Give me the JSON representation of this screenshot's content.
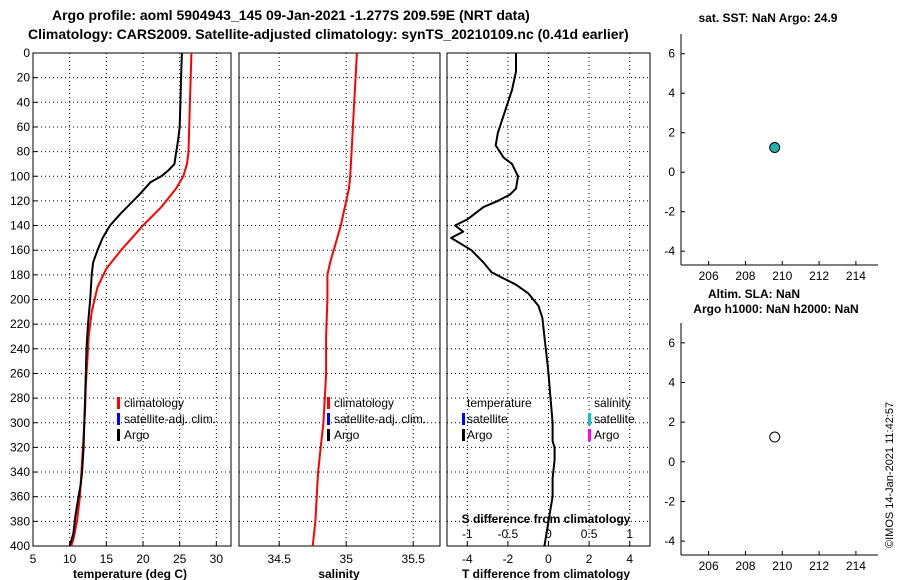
{
  "header": {
    "line1": "Argo profile: aoml 5904943_145 09-Jan-2021 -1.277S 209.59E (NRT data)",
    "line2": "Climatology: CARS2009. Satellite-adjusted climatology: synTS_20210109.nc (0.41d earlier)"
  },
  "copyright": "©IMOS 14-Jan-2021 11:42:57",
  "colors": {
    "climatology": "#ff0000",
    "satellite": "#0000ff",
    "argo": "#000000",
    "sat_cyan": "#00cccc",
    "argo_magenta": "#ff00ff",
    "marker_fill": "#20b2aa"
  },
  "chart_data": [
    {
      "id": "temperature",
      "type": "line",
      "xlabel": "temperature (deg C)",
      "xlim": [
        5,
        32
      ],
      "xticks": [
        5,
        10,
        15,
        20,
        25,
        30
      ],
      "xtick_labels": [
        "5",
        "10",
        "15",
        "20",
        "25",
        "30"
      ],
      "ylim": [
        0,
        400
      ],
      "yticks": [
        0,
        20,
        40,
        60,
        80,
        100,
        120,
        140,
        160,
        180,
        200,
        220,
        240,
        260,
        280,
        300,
        320,
        340,
        360,
        380,
        400
      ],
      "ytick_labels": [
        "0",
        "20",
        "40",
        "60",
        "80",
        "100",
        "120",
        "140",
        "160",
        "180",
        "200",
        "220",
        "240",
        "260",
        "280",
        "300",
        "320",
        "340",
        "360",
        "380",
        "400"
      ],
      "grid": true,
      "legend": [
        "climatology",
        "satellite-adj. clim.",
        "Argo"
      ],
      "series": [
        {
          "name": "climatology",
          "color": "#ff0000",
          "x": [
            26.6,
            26.5,
            26.4,
            26.3,
            26.2,
            26.0,
            25.5,
            24.5,
            22.5,
            20.0,
            17.0,
            15.0,
            13.8,
            13.0,
            12.6,
            12.4,
            12.2,
            12.1,
            12.0,
            11.8,
            11.6,
            11.4,
            11.0,
            10.5,
            10.2
          ],
          "y": [
            0,
            20,
            40,
            60,
            80,
            90,
            100,
            110,
            125,
            140,
            160,
            175,
            190,
            210,
            230,
            250,
            270,
            290,
            300,
            320,
            340,
            360,
            380,
            395,
            400
          ]
        },
        {
          "name": "Argo",
          "color": "#000000",
          "x": [
            25.3,
            25.2,
            25.1,
            25.0,
            24.8,
            24.6,
            24.4,
            24.3,
            23.5,
            22.5,
            21.0,
            19.5,
            17.0,
            15.5,
            14.5,
            13.8,
            13.2,
            13.0,
            12.8,
            12.5,
            12.3,
            12.2,
            12.1,
            12.0,
            11.9,
            11.7,
            11.5,
            11.2,
            10.8,
            10.5,
            10.0
          ],
          "y": [
            0,
            20,
            40,
            60,
            70,
            78,
            85,
            90,
            95,
            100,
            105,
            115,
            130,
            140,
            150,
            160,
            170,
            180,
            200,
            220,
            240,
            260,
            280,
            300,
            320,
            340,
            350,
            360,
            375,
            390,
            400
          ]
        }
      ]
    },
    {
      "id": "salinity",
      "type": "line",
      "xlabel": "salinity",
      "xlim": [
        34.2,
        35.7
      ],
      "xticks": [
        34.5,
        35,
        35.5
      ],
      "xtick_labels": [
        "34.5",
        "35",
        "35.5"
      ],
      "ylim": [
        0,
        400
      ],
      "grid": true,
      "legend": [
        "climatology",
        "satellite-adj. clim.",
        "Argo"
      ],
      "series": [
        {
          "name": "climatology",
          "color": "#ff0000",
          "x": [
            35.08,
            35.07,
            35.06,
            35.05,
            35.04,
            35.03,
            35.02,
            35.0,
            34.98,
            34.96,
            34.92,
            34.88,
            34.86,
            34.86,
            34.85,
            34.85,
            34.84,
            34.83,
            34.81,
            34.79,
            34.78,
            34.77,
            34.75
          ],
          "y": [
            0,
            20,
            40,
            60,
            80,
            100,
            110,
            120,
            130,
            140,
            155,
            170,
            180,
            200,
            230,
            260,
            280,
            300,
            320,
            340,
            360,
            380,
            400
          ]
        }
      ]
    },
    {
      "id": "difference",
      "type": "line",
      "xlabel": "T difference from climatology",
      "xlim": [
        -5,
        5
      ],
      "xticks": [
        -4,
        -2,
        0,
        2,
        4
      ],
      "xtick_labels": [
        "-4",
        "-2",
        "0",
        "2",
        "4"
      ],
      "top_label": "S difference from climatology",
      "top_ticks": [
        -1,
        -0.5,
        0,
        0.5,
        1
      ],
      "top_tick_labels": [
        "-1",
        "-0.5",
        "0",
        "0.5",
        "1"
      ],
      "ylim": [
        0,
        400
      ],
      "grid": true,
      "legend_left": [
        "temperature",
        "satellite",
        "Argo"
      ],
      "legend_right": [
        "salinity",
        "satellite",
        "Argo"
      ],
      "series": [
        {
          "name": "Argo T difference",
          "color": "#000000",
          "x": [
            -1.6,
            -1.6,
            -1.8,
            -2.1,
            -2.3,
            -2.5,
            -2.6,
            -2.2,
            -1.8,
            -1.5,
            -1.6,
            -1.9,
            -2.5,
            -3.2,
            -4.0,
            -4.6,
            -4.2,
            -4.8,
            -3.8,
            -3.2,
            -2.8,
            -2.2,
            -1.6,
            -1.0,
            -0.5,
            -0.3,
            -0.2,
            -0.1,
            0.0,
            0.1,
            0.2,
            0.2,
            0.3,
            0.3,
            0.2,
            0.2,
            0.1,
            0.0,
            -0.1,
            -0.2
          ],
          "y": [
            0,
            15,
            30,
            45,
            55,
            65,
            75,
            85,
            90,
            100,
            110,
            115,
            120,
            125,
            135,
            140,
            145,
            150,
            160,
            170,
            178,
            183,
            188,
            195,
            205,
            215,
            230,
            245,
            260,
            280,
            300,
            315,
            320,
            330,
            345,
            360,
            370,
            380,
            390,
            400
          ]
        }
      ]
    },
    {
      "id": "sst",
      "type": "scatter",
      "title": "sat. SST: NaN Argo: 24.9",
      "xlim": [
        204.5,
        215.2
      ],
      "xticks": [
        206,
        208,
        210,
        212,
        214
      ],
      "xtick_labels": [
        "206",
        "208",
        "210",
        "212",
        "214"
      ],
      "ylim": [
        -4.7,
        7
      ],
      "yticks": [
        -4,
        -2,
        0,
        2,
        4,
        6
      ],
      "ytick_labels": [
        "-4",
        "-2",
        "0",
        "2",
        "4",
        "6"
      ],
      "grid": false,
      "points": [
        {
          "x": 209.59,
          "y": 1.25,
          "fill": "#20b2aa"
        }
      ]
    },
    {
      "id": "sla",
      "type": "scatter",
      "title_line1": "Altim. SLA: NaN",
      "title_line2": "Argo h1000: NaN h2000: NaN",
      "xlim": [
        204.5,
        215.2
      ],
      "xticks": [
        206,
        208,
        210,
        212,
        214
      ],
      "xtick_labels": [
        "206",
        "208",
        "210",
        "212",
        "214"
      ],
      "ylim": [
        -4.7,
        7
      ],
      "yticks": [
        -4,
        -2,
        0,
        2,
        4,
        6
      ],
      "ytick_labels": [
        "-4",
        "-2",
        "0",
        "2",
        "4",
        "6"
      ],
      "grid": false,
      "points": [
        {
          "x": 209.59,
          "y": 1.25,
          "fill": "#ffffff"
        }
      ]
    }
  ]
}
